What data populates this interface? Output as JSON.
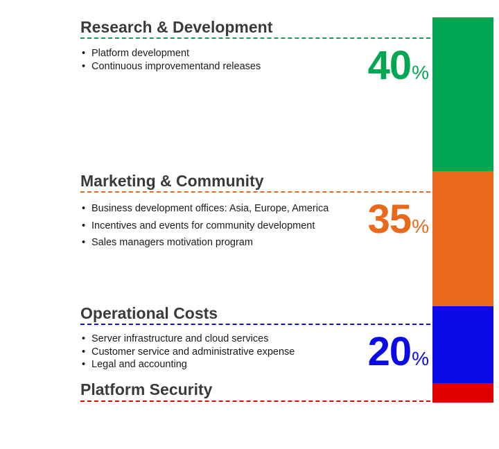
{
  "colors": {
    "research": "#00a651",
    "marketing": "#e8691a",
    "operational": "#0a0ae6",
    "security": "#e00000"
  },
  "sections": [
    {
      "key": "research",
      "title": "Research & Development",
      "bullets": [
        "Platform development",
        "Continuous improvementand releases"
      ],
      "percent_number": "40",
      "percent_sign": "%"
    },
    {
      "key": "marketing",
      "title": "Marketing & Community",
      "bullets": [
        "Business development offices: Asia, Europe, America",
        "Incentives and events for community development",
        "Sales managers motivation program"
      ],
      "percent_number": "35",
      "percent_sign": "%"
    },
    {
      "key": "operational",
      "title": "Operational Costs",
      "bullets": [
        "Server infrastructure and cloud services",
        "Customer service and administrative expense",
        "Legal and accounting"
      ],
      "percent_number": "20",
      "percent_sign": "%"
    },
    {
      "key": "security",
      "title": "Platform Security",
      "bullets": [],
      "percent_number": "",
      "percent_sign": ""
    }
  ],
  "chart_data": {
    "type": "bar",
    "orientation": "stacked-vertical",
    "categories": [
      "Research & Development",
      "Marketing & Community",
      "Operational Costs",
      "Platform Security"
    ],
    "values": [
      40,
      35,
      20,
      5
    ],
    "unit": "%"
  }
}
